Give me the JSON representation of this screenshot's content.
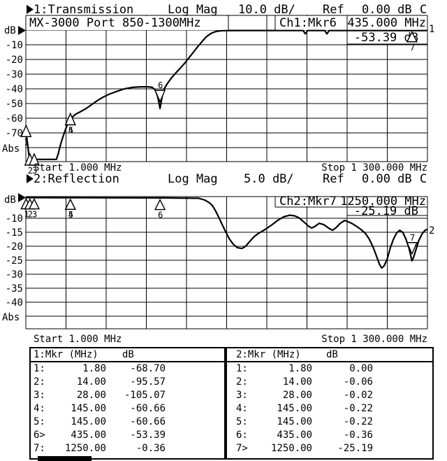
{
  "colors": {
    "fg": "#000000",
    "bg": "#ffffff"
  },
  "header1": {
    "pointer": "▶",
    "segments": [
      {
        "x": 48,
        "text": "1:Transmission"
      },
      {
        "x": 240,
        "text": "Log Mag"
      },
      {
        "x": 341,
        "text": "10.0 dB/"
      },
      {
        "x": 462,
        "text": "Ref"
      },
      {
        "x": 518,
        "text": "0.00 dB"
      },
      {
        "x": 601,
        "text": "C"
      }
    ]
  },
  "header2": {
    "pointer": "▶",
    "segments": [
      {
        "x": 48,
        "text": "2:Reflection"
      },
      {
        "x": 240,
        "text": "Log Mag"
      },
      {
        "x": 349,
        "text": "5.0 dB/"
      },
      {
        "x": 462,
        "text": "Ref"
      },
      {
        "x": 518,
        "text": "0.00 dB"
      },
      {
        "x": 601,
        "text": "C"
      }
    ]
  },
  "chart1": {
    "device_label": "MX-3000 Port 850-1300MHz",
    "readout_label": "Ch1:Mkr6",
    "readout_freq": "435.000 MHz",
    "readout_value": "-53.39 dB",
    "trace_number": "1",
    "unit_label": "dB",
    "abs_label": "Abs",
    "y_labels": [
      "-10",
      "-20",
      "-30",
      "-40",
      "-50",
      "-60",
      "-70"
    ],
    "start_label": "Start 1.000 MHz",
    "stop_label": "Stop 1 300.000 MHz"
  },
  "chart2": {
    "readout_label": "Ch2:Mkr7",
    "readout_freq": "1250.000 MHz",
    "readout_value": "-25.19 dB",
    "trace_number": "2",
    "unit_label": "dB",
    "abs_label": "Abs",
    "y_labels": [
      "-10",
      "-15",
      "-20",
      "-25",
      "-30",
      "-35",
      "-40"
    ],
    "start_label": "Start 1.000 MHz",
    "stop_label": "Stop 1 300.000 MHz"
  },
  "tables": [
    {
      "header": {
        "col1": "1:Mkr (MHz)",
        "col2": "dB"
      },
      "rows": [
        [
          "1:",
          "1.80",
          "-68.70"
        ],
        [
          "2:",
          "14.00",
          "-95.57"
        ],
        [
          "3:",
          "28.00",
          "-105.07"
        ],
        [
          "4:",
          "145.00",
          "-60.66"
        ],
        [
          "5:",
          "145.00",
          "-60.66"
        ],
        [
          "6>",
          "435.00",
          "-53.39"
        ],
        [
          "7:",
          "1250.00",
          "-0.36"
        ]
      ]
    },
    {
      "header": {
        "col1": "2:Mkr (MHz)",
        "col2": "dB"
      },
      "rows": [
        [
          "1:",
          "1.80",
          "0.00"
        ],
        [
          "2:",
          "14.00",
          "-0.06"
        ],
        [
          "3:",
          "28.00",
          "-0.02"
        ],
        [
          "4:",
          "145.00",
          "-0.22"
        ],
        [
          "5:",
          "145.00",
          "-0.22"
        ],
        [
          "6:",
          "435.00",
          "-0.36"
        ],
        [
          "7>",
          "1250.00",
          "-25.19"
        ]
      ]
    }
  ],
  "chart_data": [
    {
      "type": "line",
      "title": "1:Transmission",
      "x_unit": "MHz",
      "y_unit": "dB",
      "x_range": [
        1,
        1300
      ],
      "scale_db_per_div": 10,
      "ref_db": 0,
      "grid": true,
      "points": [
        [
          1,
          -68
        ],
        [
          1.8,
          -68.7
        ],
        [
          3,
          -71
        ],
        [
          5,
          -75
        ],
        [
          8,
          -80
        ],
        [
          11,
          -85
        ],
        [
          13,
          -88
        ],
        [
          100,
          -88
        ],
        [
          106,
          -84
        ],
        [
          113,
          -78
        ],
        [
          122,
          -72
        ],
        [
          132,
          -66
        ],
        [
          145,
          -60.66
        ],
        [
          160,
          -57.5
        ],
        [
          178,
          -55.5
        ],
        [
          195,
          -53.5
        ],
        [
          212,
          -51
        ],
        [
          232,
          -48
        ],
        [
          252,
          -45.5
        ],
        [
          272,
          -43.5
        ],
        [
          298,
          -41.5
        ],
        [
          320,
          -40
        ],
        [
          345,
          -39
        ],
        [
          372,
          -38.6
        ],
        [
          398,
          -38.6
        ],
        [
          410,
          -39
        ],
        [
          420,
          -41
        ],
        [
          427,
          -45
        ],
        [
          432,
          -50
        ],
        [
          435,
          -53.39
        ],
        [
          438,
          -50
        ],
        [
          443,
          -44
        ],
        [
          450,
          -39.5
        ],
        [
          460,
          -36
        ],
        [
          472,
          -32.5
        ],
        [
          487,
          -29
        ],
        [
          500,
          -26
        ],
        [
          515,
          -22.5
        ],
        [
          530,
          -18.5
        ],
        [
          545,
          -14.5
        ],
        [
          558,
          -11
        ],
        [
          572,
          -7.5
        ],
        [
          585,
          -4.5
        ],
        [
          598,
          -2.5
        ],
        [
          612,
          -1.2
        ],
        [
          625,
          -0.6
        ],
        [
          640,
          -0.4
        ],
        [
          700,
          -0.35
        ],
        [
          800,
          -0.33
        ],
        [
          898,
          -0.33
        ],
        [
          905,
          -2.6
        ],
        [
          912,
          -0.33
        ],
        [
          968,
          -0.33
        ],
        [
          975,
          -2.6
        ],
        [
          982,
          -0.33
        ],
        [
          1100,
          -0.34
        ],
        [
          1250,
          -0.36
        ],
        [
          1300,
          -0.35
        ]
      ],
      "markers": [
        {
          "n": "1",
          "mhz": 1.8,
          "db": -68.7
        },
        {
          "n": "2",
          "mhz": 14,
          "db": -95.57
        },
        {
          "n": "3",
          "mhz": 28,
          "db": -105.07
        },
        {
          "n": "4",
          "mhz": 145,
          "db": -60.66
        },
        {
          "n": "5",
          "mhz": 145,
          "db": -60.66
        },
        {
          "n": "6",
          "mhz": 435,
          "db": -53.39,
          "dir": "down",
          "active": true
        },
        {
          "n": "7",
          "mhz": 1250,
          "db": -0.36
        }
      ]
    },
    {
      "type": "line",
      "title": "2:Reflection",
      "x_unit": "MHz",
      "y_unit": "dB",
      "x_range": [
        1,
        1300
      ],
      "scale_db_per_div": 5,
      "ref_db": 0,
      "grid": true,
      "points": [
        [
          1,
          0.0
        ],
        [
          100,
          -0.05
        ],
        [
          300,
          -0.1
        ],
        [
          450,
          -0.15
        ],
        [
          560,
          -0.3
        ],
        [
          580,
          -1.2
        ],
        [
          595,
          -2.5
        ],
        [
          605,
          -4
        ],
        [
          615,
          -6.5
        ],
        [
          625,
          -9.5
        ],
        [
          635,
          -12
        ],
        [
          648,
          -15
        ],
        [
          660,
          -17.5
        ],
        [
          672,
          -19.3
        ],
        [
          685,
          -20.5
        ],
        [
          700,
          -20.8
        ],
        [
          712,
          -20
        ],
        [
          725,
          -18.3
        ],
        [
          740,
          -16.5
        ],
        [
          755,
          -15.3
        ],
        [
          775,
          -14
        ],
        [
          795,
          -12.5
        ],
        [
          815,
          -10.8
        ],
        [
          835,
          -9.3
        ],
        [
          855,
          -8.5
        ],
        [
          870,
          -8.8
        ],
        [
          885,
          -9.8
        ],
        [
          900,
          -11.3
        ],
        [
          915,
          -12.8
        ],
        [
          925,
          -13.5
        ],
        [
          935,
          -13
        ],
        [
          950,
          -11.8
        ],
        [
          965,
          -12.3
        ],
        [
          980,
          -13.5
        ],
        [
          993,
          -14.3
        ],
        [
          1005,
          -13.3
        ],
        [
          1018,
          -11.8
        ],
        [
          1032,
          -10.8
        ],
        [
          1045,
          -11.3
        ],
        [
          1058,
          -12
        ],
        [
          1072,
          -13
        ],
        [
          1085,
          -14
        ],
        [
          1100,
          -15.5
        ],
        [
          1112,
          -17.5
        ],
        [
          1125,
          -20.5
        ],
        [
          1135,
          -23.5
        ],
        [
          1145,
          -26.5
        ],
        [
          1152,
          -27.8
        ],
        [
          1160,
          -27
        ],
        [
          1170,
          -24.5
        ],
        [
          1180,
          -20.5
        ],
        [
          1190,
          -17.5
        ],
        [
          1200,
          -15.3
        ],
        [
          1210,
          -14.3
        ],
        [
          1220,
          -15
        ],
        [
          1230,
          -17.3
        ],
        [
          1240,
          -20.5
        ],
        [
          1247,
          -23.8
        ],
        [
          1250,
          -25.19
        ],
        [
          1255,
          -24
        ],
        [
          1262,
          -21.5
        ],
        [
          1272,
          -18
        ],
        [
          1282,
          -15.7
        ],
        [
          1292,
          -14.3
        ],
        [
          1300,
          -13.9
        ]
      ],
      "markers": [
        {
          "n": "1",
          "mhz": 1.8,
          "db": 0.0
        },
        {
          "n": "2",
          "mhz": 14,
          "db": -0.06
        },
        {
          "n": "3",
          "mhz": 28,
          "db": -0.02
        },
        {
          "n": "4",
          "mhz": 145,
          "db": -0.22
        },
        {
          "n": "5",
          "mhz": 145,
          "db": -0.22
        },
        {
          "n": "6",
          "mhz": 435,
          "db": -0.36
        },
        {
          "n": "7",
          "mhz": 1250,
          "db": -25.19,
          "dir": "down",
          "active": true
        }
      ]
    }
  ],
  "bottom_bar": {
    "present": true
  }
}
